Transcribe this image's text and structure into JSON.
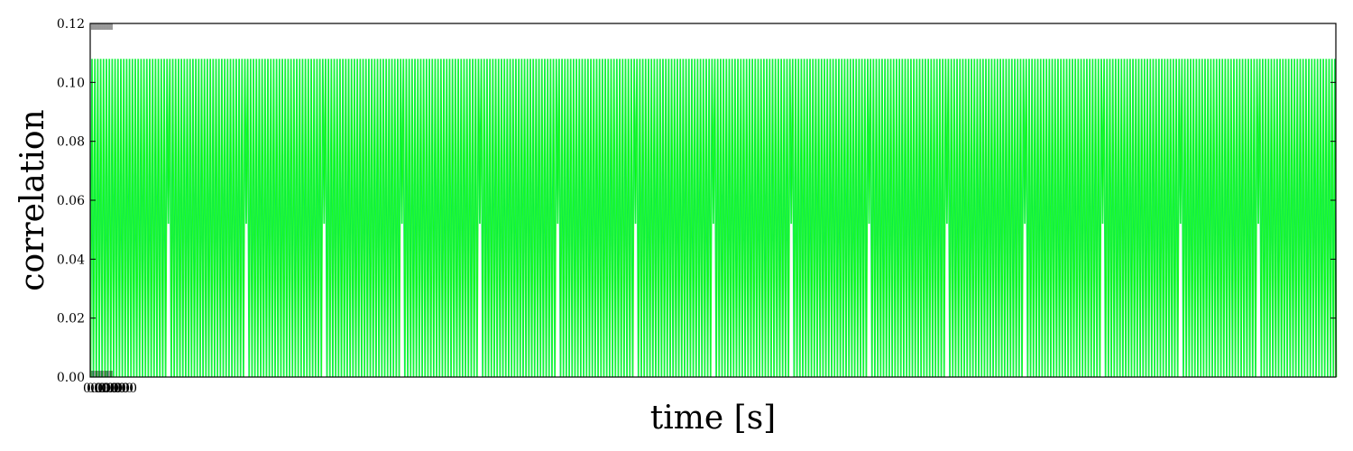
{
  "chart_data": {
    "type": "line",
    "title": "",
    "xlabel": "time [s]",
    "ylabel": "correlation",
    "ylim": [
      0,
      0.12
    ],
    "y_ticks": [
      "0.00",
      "0.02",
      "0.04",
      "0.06",
      "0.08",
      "0.10",
      "0.12"
    ],
    "x_tick_labels_overlapping": "0.000",
    "grid": false,
    "legend": "none",
    "series": [
      {
        "color": "#00ff00",
        "pattern": "dense oscillation between 0.00 and 0.108",
        "peak": 0.108,
        "trough": 0.0,
        "periodic_dip_to": 0.052,
        "dip_count": 15
      }
    ],
    "colors": {
      "line_primary": "#00ff00",
      "line_alt": "#11e36a",
      "axes": "#000000",
      "background": "#ffffff"
    }
  }
}
